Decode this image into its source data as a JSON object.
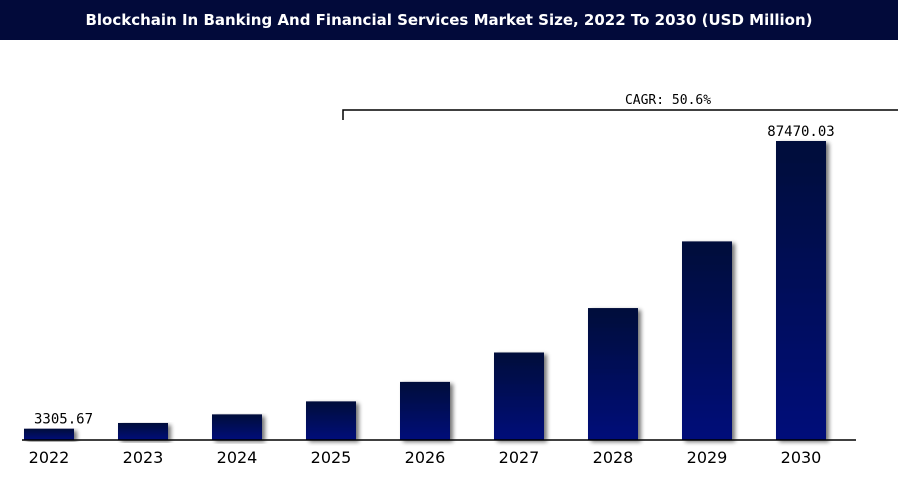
{
  "chart_data": {
    "type": "bar",
    "title": "Blockchain In Banking And Financial Services Market Size, 2022 To 2030 (USD Million)",
    "categories": [
      "2022",
      "2023",
      "2024",
      "2025",
      "2026",
      "2027",
      "2028",
      "2029",
      "2030"
    ],
    "values": [
      3305.67,
      4980,
      7500,
      11300,
      17000,
      25600,
      38600,
      58100,
      87470.03
    ],
    "data_labels": [
      {
        "index": 0,
        "text": "3305.67"
      },
      {
        "index": 8,
        "text": "87470.03"
      }
    ],
    "annotation": "CAGR: 50.6%",
    "ylim": [
      0,
      87470.03
    ],
    "grid": false,
    "legend": "none",
    "colors": {
      "bar_top": "#06107a",
      "bar_bottom": "#020a3a",
      "title_bg": "#020a3a",
      "title_text": "#ffffff"
    }
  }
}
